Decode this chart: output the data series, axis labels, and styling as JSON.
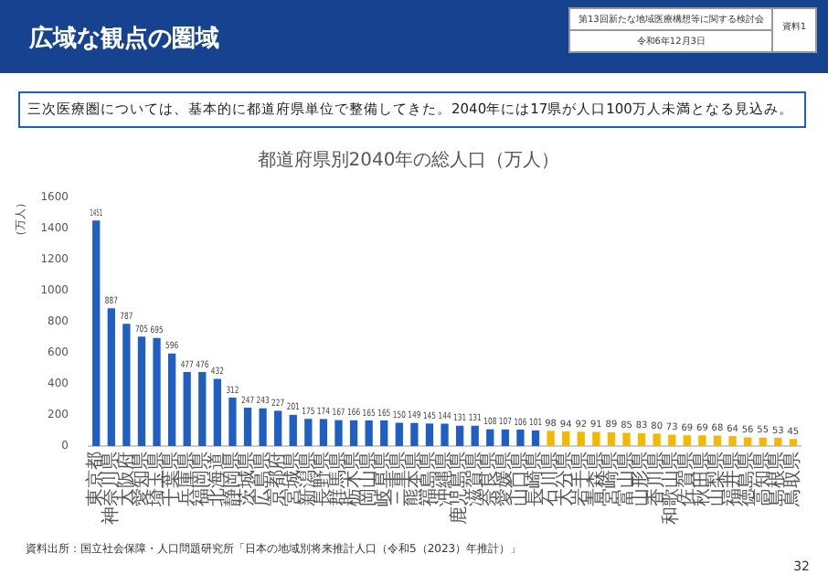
{
  "chart_data": {
    "type": "bar",
    "title": "都道府県別2040年の総人口（万人）",
    "ylabel": "（万人）",
    "subtitle": "三次医療圏については、基本的に都道府県単位で整備してきた。2040年には17県が人口100万人未満となる見込み。",
    "annotations": [
      "広域な観点の圏域",
      "第13回新たな地域医療構想等に関する検討会",
      "令和6年12月3日",
      "資料1",
      "資料出所：国立社会保障・人口問題研究所「日本の地域別将来推計人口（令和5（2023）年推計）」",
      "32"
    ],
    "categories": [
      "東京都",
      "神奈川県",
      "大阪府",
      "愛知県",
      "埼玉県",
      "千葉県",
      "兵庫県",
      "福岡県",
      "北海道",
      "静岡県",
      "茨城県",
      "広島県",
      "京都府",
      "宮城県",
      "新潟県",
      "長野県",
      "群馬県",
      "栃木県",
      "岡山県",
      "岐阜県",
      "三重県",
      "熊本県",
      "福島県",
      "沖縄県",
      "鹿児島県",
      "滋賀県",
      "奈良県",
      "愛媛県",
      "山口県",
      "長崎県",
      "石川県",
      "大分県",
      "岩手県",
      "青森県",
      "宮崎県",
      "富山県",
      "山形県",
      "香川県",
      "和歌山県",
      "佐賀県",
      "秋田県",
      "山梨県",
      "福井県",
      "徳島県",
      "高知県",
      "島根県",
      "鳥取県"
    ],
    "values": [
      1451,
      887,
      787,
      705,
      695,
      596,
      477,
      476,
      432,
      312,
      247,
      243,
      227,
      201,
      175,
      174,
      167,
      166,
      165,
      165,
      150,
      149,
      145,
      144,
      131,
      131,
      108,
      107,
      106,
      101,
      98,
      94,
      92,
      91,
      89,
      85,
      83,
      80,
      73,
      69,
      69,
      68,
      64,
      56,
      55,
      53,
      45
    ],
    "colors": [
      "#1f5fc4",
      "#1f5fc4",
      "#1f5fc4",
      "#1f5fc4",
      "#1f5fc4",
      "#1f5fc4",
      "#1f5fc4",
      "#1f5fc4",
      "#1f5fc4",
      "#1f5fc4",
      "#1f5fc4",
      "#1f5fc4",
      "#1f5fc4",
      "#1f5fc4",
      "#1f5fc4",
      "#1f5fc4",
      "#1f5fc4",
      "#1f5fc4",
      "#1f5fc4",
      "#1f5fc4",
      "#1f5fc4",
      "#1f5fc4",
      "#1f5fc4",
      "#1f5fc4",
      "#1f5fc4",
      "#1f5fc4",
      "#1f5fc4",
      "#1f5fc4",
      "#1f5fc4",
      "#1f5fc4",
      "#f5b800",
      "#f5b800",
      "#f5b800",
      "#f5b800",
      "#f5b800",
      "#f5b800",
      "#f5b800",
      "#f5b800",
      "#f5b800",
      "#f5b800",
      "#f5b800",
      "#f5b800",
      "#f5b800",
      "#f5b800",
      "#f5b800",
      "#f5b800",
      "#f5b800"
    ],
    "ylim": [
      0,
      1600
    ],
    "yticks": [
      0,
      200,
      400,
      600,
      800,
      1000,
      1200,
      1400,
      1600
    ],
    "grid": false,
    "legend": false,
    "data_labels": true
  }
}
